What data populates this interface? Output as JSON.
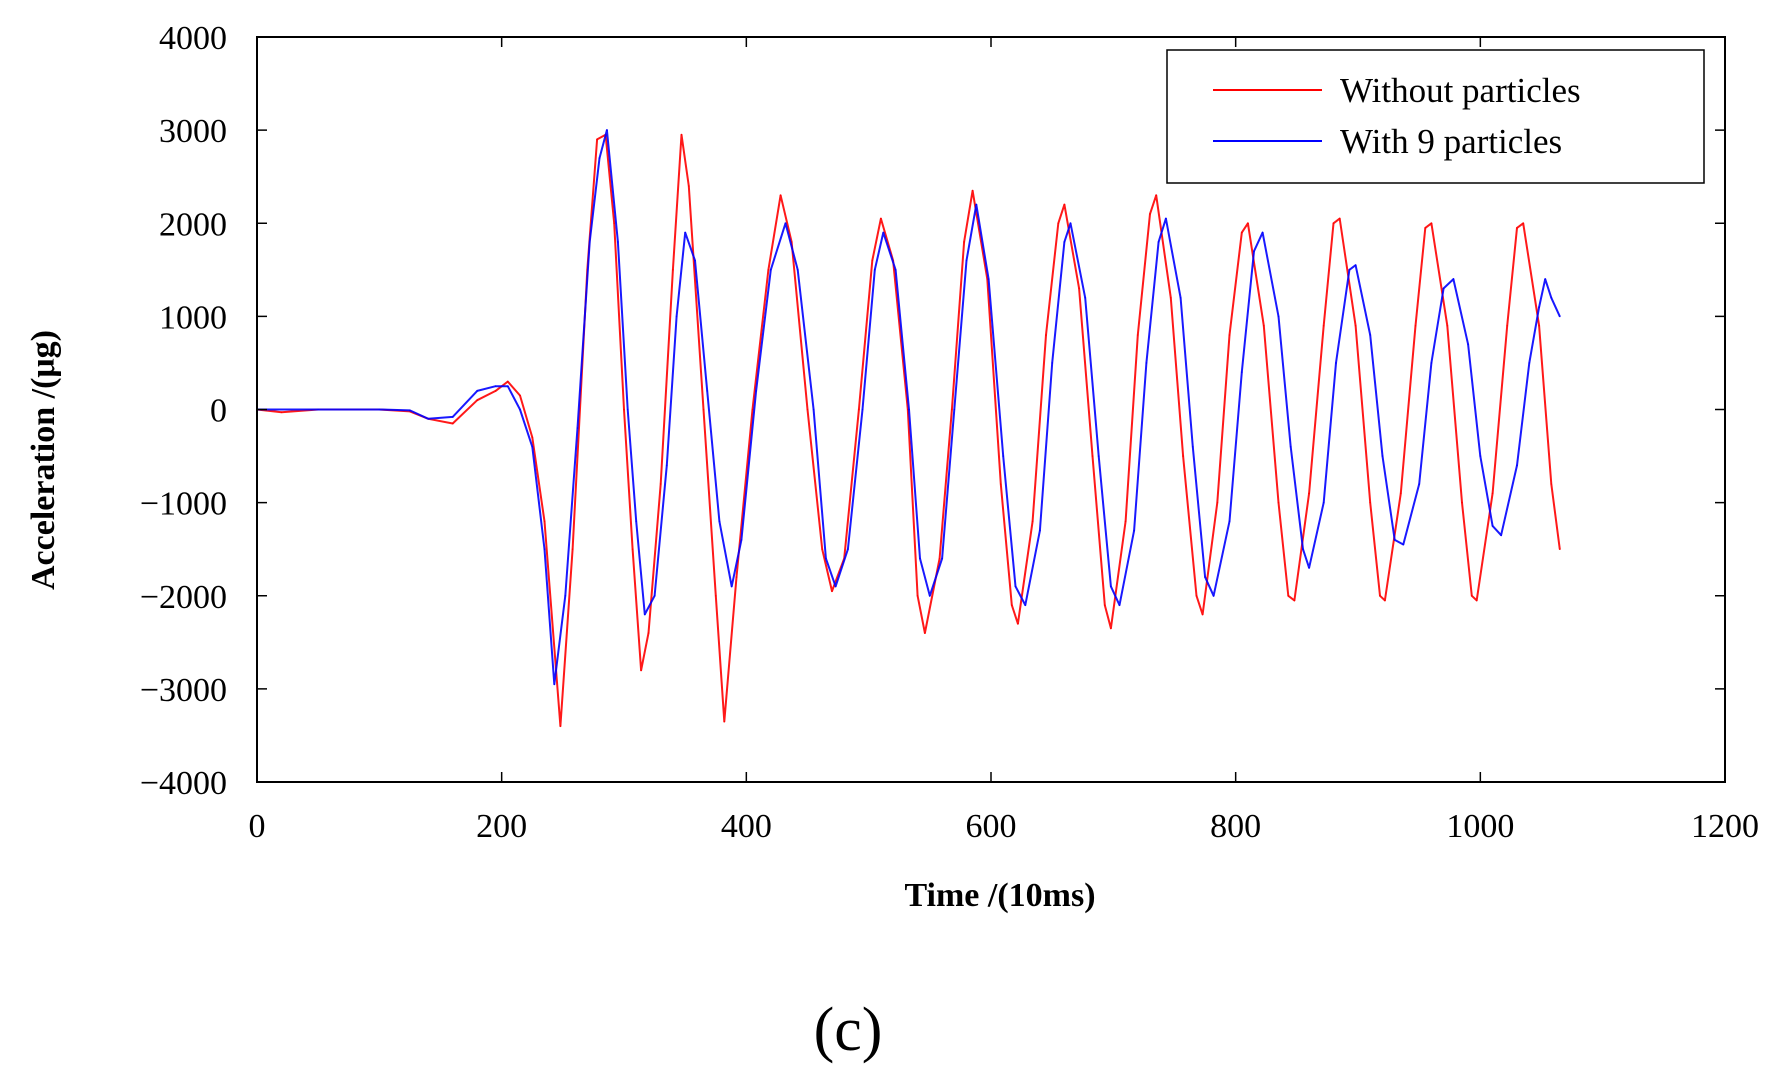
{
  "chart_data": {
    "type": "line",
    "title": "",
    "xlabel": "Time /(10ms)",
    "ylabel": "Acceleration /(μg)",
    "xlim": [
      0,
      1200
    ],
    "ylim": [
      -4000,
      4000
    ],
    "xticks": [
      0,
      200,
      400,
      600,
      800,
      1000,
      1200
    ],
    "xtick_labels": [
      "0",
      "200",
      "400",
      "600",
      "800",
      "1000",
      "1200"
    ],
    "yticks": [
      4000,
      3000,
      2000,
      1000,
      0,
      -1000,
      -2000,
      -3000,
      -4000
    ],
    "ytick_labels": [
      "4000",
      "3000",
      "2000",
      "1000",
      "0",
      "−1000",
      "−2000",
      "−3000",
      "−4000"
    ],
    "grid": false,
    "legend_position": "top-right",
    "panel_label": "(c)",
    "series": [
      {
        "name": "Without particles",
        "color": "#ff0000",
        "points": [
          [
            0,
            0
          ],
          [
            20,
            -30
          ],
          [
            50,
            0
          ],
          [
            100,
            0
          ],
          [
            125,
            -20
          ],
          [
            140,
            -100
          ],
          [
            160,
            -150
          ],
          [
            180,
            100
          ],
          [
            195,
            200
          ],
          [
            205,
            300
          ],
          [
            215,
            150
          ],
          [
            225,
            -300
          ],
          [
            235,
            -1200
          ],
          [
            248,
            -3400
          ],
          [
            258,
            -1500
          ],
          [
            270,
            1500
          ],
          [
            278,
            2900
          ],
          [
            285,
            2950
          ],
          [
            292,
            2000
          ],
          [
            300,
            0
          ],
          [
            307,
            -1500
          ],
          [
            314,
            -2800
          ],
          [
            320,
            -2400
          ],
          [
            330,
            -800
          ],
          [
            340,
            1500
          ],
          [
            347,
            2950
          ],
          [
            353,
            2400
          ],
          [
            365,
            0
          ],
          [
            375,
            -2000
          ],
          [
            382,
            -3350
          ],
          [
            392,
            -1800
          ],
          [
            405,
            0
          ],
          [
            418,
            1500
          ],
          [
            428,
            2300
          ],
          [
            437,
            1800
          ],
          [
            450,
            0
          ],
          [
            462,
            -1500
          ],
          [
            470,
            -1950
          ],
          [
            480,
            -1600
          ],
          [
            492,
            0
          ],
          [
            503,
            1600
          ],
          [
            510,
            2050
          ],
          [
            520,
            1600
          ],
          [
            532,
            0
          ],
          [
            540,
            -2000
          ],
          [
            546,
            -2400
          ],
          [
            558,
            -1600
          ],
          [
            568,
            0
          ],
          [
            578,
            1800
          ],
          [
            585,
            2350
          ],
          [
            597,
            1400
          ],
          [
            608,
            -800
          ],
          [
            617,
            -2100
          ],
          [
            622,
            -2300
          ],
          [
            634,
            -1200
          ],
          [
            645,
            800
          ],
          [
            655,
            2000
          ],
          [
            660,
            2200
          ],
          [
            672,
            1300
          ],
          [
            683,
            -500
          ],
          [
            693,
            -2100
          ],
          [
            698,
            -2350
          ],
          [
            710,
            -1200
          ],
          [
            720,
            800
          ],
          [
            730,
            2100
          ],
          [
            735,
            2300
          ],
          [
            747,
            1200
          ],
          [
            757,
            -500
          ],
          [
            768,
            -2000
          ],
          [
            773,
            -2200
          ],
          [
            785,
            -1000
          ],
          [
            795,
            800
          ],
          [
            805,
            1900
          ],
          [
            810,
            2000
          ],
          [
            823,
            900
          ],
          [
            835,
            -1000
          ],
          [
            843,
            -2000
          ],
          [
            848,
            -2050
          ],
          [
            860,
            -900
          ],
          [
            872,
            900
          ],
          [
            880,
            2000
          ],
          [
            885,
            2050
          ],
          [
            898,
            900
          ],
          [
            910,
            -1000
          ],
          [
            918,
            -2000
          ],
          [
            922,
            -2050
          ],
          [
            935,
            -900
          ],
          [
            947,
            900
          ],
          [
            955,
            1950
          ],
          [
            960,
            2000
          ],
          [
            973,
            900
          ],
          [
            985,
            -1000
          ],
          [
            993,
            -2000
          ],
          [
            997,
            -2050
          ],
          [
            1010,
            -900
          ],
          [
            1022,
            900
          ],
          [
            1030,
            1950
          ],
          [
            1035,
            2000
          ],
          [
            1048,
            900
          ],
          [
            1058,
            -800
          ],
          [
            1065,
            -1500
          ]
        ]
      },
      {
        "name": "With 9 particles",
        "color": "#0000ff",
        "points": [
          [
            0,
            0
          ],
          [
            50,
            0
          ],
          [
            100,
            0
          ],
          [
            125,
            -10
          ],
          [
            140,
            -100
          ],
          [
            160,
            -80
          ],
          [
            180,
            200
          ],
          [
            195,
            250
          ],
          [
            205,
            250
          ],
          [
            215,
            0
          ],
          [
            225,
            -400
          ],
          [
            235,
            -1500
          ],
          [
            243,
            -2950
          ],
          [
            252,
            -2000
          ],
          [
            262,
            -200
          ],
          [
            272,
            1800
          ],
          [
            280,
            2700
          ],
          [
            286,
            3000
          ],
          [
            295,
            1800
          ],
          [
            303,
            0
          ],
          [
            310,
            -1200
          ],
          [
            317,
            -2200
          ],
          [
            325,
            -2000
          ],
          [
            335,
            -600
          ],
          [
            343,
            1000
          ],
          [
            350,
            1900
          ],
          [
            358,
            1600
          ],
          [
            368,
            200
          ],
          [
            378,
            -1200
          ],
          [
            388,
            -1900
          ],
          [
            396,
            -1400
          ],
          [
            408,
            200
          ],
          [
            420,
            1500
          ],
          [
            432,
            2000
          ],
          [
            442,
            1500
          ],
          [
            455,
            0
          ],
          [
            465,
            -1600
          ],
          [
            473,
            -1900
          ],
          [
            483,
            -1500
          ],
          [
            495,
            0
          ],
          [
            505,
            1500
          ],
          [
            512,
            1900
          ],
          [
            522,
            1500
          ],
          [
            533,
            0
          ],
          [
            542,
            -1600
          ],
          [
            550,
            -2000
          ],
          [
            560,
            -1600
          ],
          [
            570,
            0
          ],
          [
            580,
            1600
          ],
          [
            588,
            2200
          ],
          [
            598,
            1400
          ],
          [
            610,
            -500
          ],
          [
            620,
            -1900
          ],
          [
            628,
            -2100
          ],
          [
            640,
            -1300
          ],
          [
            650,
            500
          ],
          [
            660,
            1800
          ],
          [
            665,
            2000
          ],
          [
            677,
            1200
          ],
          [
            688,
            -500
          ],
          [
            698,
            -1900
          ],
          [
            705,
            -2100
          ],
          [
            717,
            -1300
          ],
          [
            727,
            500
          ],
          [
            737,
            1800
          ],
          [
            743,
            2050
          ],
          [
            755,
            1200
          ],
          [
            765,
            -400
          ],
          [
            775,
            -1800
          ],
          [
            782,
            -2000
          ],
          [
            795,
            -1200
          ],
          [
            805,
            400
          ],
          [
            815,
            1700
          ],
          [
            822,
            1900
          ],
          [
            835,
            1000
          ],
          [
            845,
            -400
          ],
          [
            855,
            -1500
          ],
          [
            860,
            -1700
          ],
          [
            872,
            -1000
          ],
          [
            882,
            500
          ],
          [
            893,
            1500
          ],
          [
            898,
            1550
          ],
          [
            910,
            800
          ],
          [
            920,
            -500
          ],
          [
            930,
            -1400
          ],
          [
            937,
            -1450
          ],
          [
            950,
            -800
          ],
          [
            960,
            500
          ],
          [
            970,
            1300
          ],
          [
            978,
            1400
          ],
          [
            990,
            700
          ],
          [
            1000,
            -500
          ],
          [
            1010,
            -1250
          ],
          [
            1017,
            -1350
          ],
          [
            1030,
            -600
          ],
          [
            1040,
            500
          ],
          [
            1048,
            1100
          ],
          [
            1053,
            1400
          ],
          [
            1058,
            1200
          ],
          [
            1065,
            1000
          ]
        ]
      }
    ]
  }
}
